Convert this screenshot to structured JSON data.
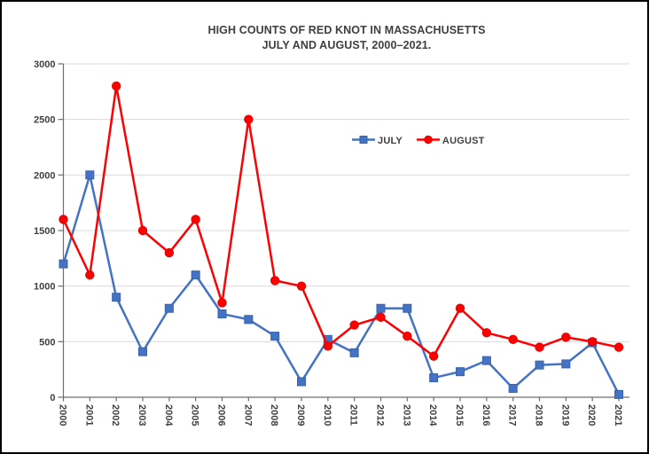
{
  "window": {
    "background": "#ffffff",
    "border_color": "#000000"
  },
  "title": {
    "line1": "HIGH COUNTS OF RED KNOT IN MASSACHUSETTS",
    "line2": "JULY AND AUGUST, 2000–2021."
  },
  "chart_data": {
    "type": "line",
    "title": "HIGH COUNTS OF RED KNOT IN MASSACHUSETTS JULY AND AUGUST, 2000–2021.",
    "categories": [
      "2000",
      "2001",
      "2002",
      "2003",
      "2004",
      "2005",
      "2006",
      "2007",
      "2008",
      "2009",
      "2010",
      "2011",
      "2012",
      "2013",
      "2014",
      "2015",
      "2016",
      "2017",
      "2018",
      "2019",
      "2020",
      "2021"
    ],
    "series": [
      {
        "name": "JULY",
        "marker": "square",
        "color": "#4472C4",
        "marker_edge": "#3A62A8",
        "values": [
          1200,
          2000,
          900,
          410,
          800,
          1100,
          750,
          700,
          550,
          140,
          520,
          400,
          800,
          800,
          175,
          230,
          330,
          80,
          290,
          300,
          490,
          25
        ]
      },
      {
        "name": "AUGUST",
        "marker": "circle",
        "color": "#FF0000",
        "marker_edge": "#E00000",
        "values": [
          1600,
          1100,
          2800,
          1500,
          1300,
          1600,
          850,
          2500,
          1050,
          1000,
          460,
          650,
          720,
          550,
          370,
          800,
          580,
          520,
          450,
          540,
          500,
          450
        ]
      }
    ],
    "xlabel": "",
    "ylabel": "",
    "ylim": [
      0,
      3000
    ],
    "yticks": [
      0,
      500,
      1000,
      1500,
      2000,
      2500,
      3000
    ],
    "grid": "horizontal",
    "legend_position": "inside-top-center",
    "grid_color": "#d9d9d9",
    "axis_color": "#6e6e6e",
    "tick_label_color": "#3f3f3f"
  }
}
